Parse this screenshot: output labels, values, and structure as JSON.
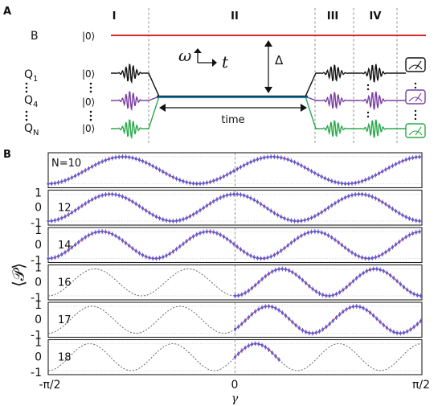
{
  "panel_a": {
    "label": "A",
    "stages": [
      "I",
      "II",
      "III",
      "IV"
    ],
    "bus_label": "B",
    "qubit_labels": [
      "Q",
      "Q",
      "Q"
    ],
    "qubit_subscripts": [
      "1",
      "4",
      "N"
    ],
    "ket": "|0⟩",
    "omega": "ω",
    "t_symbol": "t",
    "delta": "Δ",
    "time_label": "time",
    "colors": {
      "bus": "#d9262b",
      "q1": "#111111",
      "q4": "#7a3fa0",
      "qn": "#2aa84a"
    }
  },
  "panel_b": {
    "label": "B",
    "ylabel": "⟨𝒫⟩",
    "xlabel": "γ",
    "xticks": [
      "-π/2",
      "0",
      "π/2"
    ],
    "yticks": [
      "1",
      "0",
      "-1"
    ],
    "rows": [
      {
        "n_label": "N=10",
        "cycles": 10,
        "data_range": "full"
      },
      {
        "n_label": "12",
        "cycles": 12,
        "data_range": "full"
      },
      {
        "n_label": "14",
        "cycles": 14,
        "data_range": "full"
      },
      {
        "n_label": "16",
        "cycles": 16,
        "data_range": "right"
      },
      {
        "n_label": "17",
        "cycles": 17,
        "data_range": "right"
      },
      {
        "n_label": "18",
        "cycles": 18,
        "data_range": "partial"
      }
    ],
    "colors": {
      "fit": "#e0404a",
      "data": "#5a5ad8",
      "theory": "#666666"
    }
  }
}
